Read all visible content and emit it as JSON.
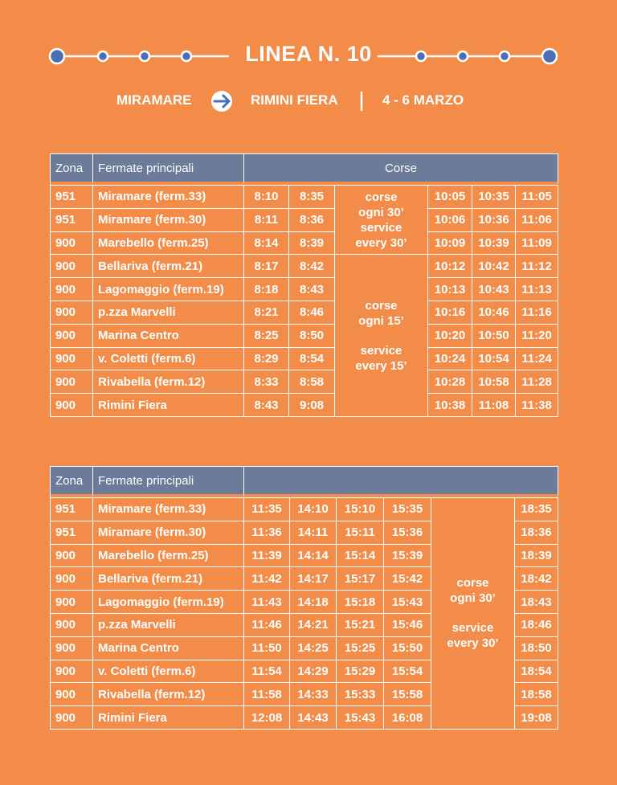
{
  "header": {
    "title": "LINEA N. 10",
    "from": "MIRAMARE",
    "to": "RIMINI FIERA",
    "dates": "4 - 6 MARZO"
  },
  "table1": {
    "headers": [
      "Zona",
      "Fermate principali",
      "Corse"
    ],
    "groups": [
      {
        "note": {
          "it": [
            "corse",
            "ogni 30’"
          ],
          "en": [
            "service",
            "every 30’"
          ]
        },
        "rows": [
          {
            "zona": "951",
            "stop": "Miramare (ferm.33)",
            "times": [
              "8:10",
              "8:35",
              "10:05",
              "10:35",
              "11:05"
            ]
          },
          {
            "zona": "951",
            "stop": "Miramare (ferm.30)",
            "times": [
              "8:11",
              "8:36",
              "10:06",
              "10:36",
              "11:06"
            ]
          },
          {
            "zona": "900",
            "stop": "Marebello (ferm.25)",
            "times": [
              "8:14",
              "8:39",
              "10:09",
              "10:39",
              "11:09"
            ]
          }
        ]
      },
      {
        "note": {
          "it": [
            "corse",
            "ogni 15’"
          ],
          "en": [
            "service",
            "every 15’"
          ]
        },
        "rows": [
          {
            "zona": "900",
            "stop": "Bellariva (ferm.21)",
            "times": [
              "8:17",
              "8:42",
              "10:12",
              "10:42",
              "11:12"
            ]
          },
          {
            "zona": "900",
            "stop": "Lagomaggio (ferm.19)",
            "times": [
              "8:18",
              "8:43",
              "10:13",
              "10:43",
              "11:13"
            ]
          },
          {
            "zona": "900",
            "stop": "p.zza Marvelli",
            "times": [
              "8:21",
              "8:46",
              "10:16",
              "10:46",
              "11:16"
            ]
          },
          {
            "zona": "900",
            "stop": "Marina Centro",
            "times": [
              "8:25",
              "8:50",
              "10:20",
              "10:50",
              "11:20"
            ]
          },
          {
            "zona": "900",
            "stop": "v. Coletti (ferm.6)",
            "times": [
              "8:29",
              "8:54",
              "10:24",
              "10:54",
              "11:24"
            ]
          },
          {
            "zona": "900",
            "stop": "Rivabella (ferm.12)",
            "times": [
              "8:33",
              "8:58",
              "10:28",
              "10:58",
              "11:28"
            ]
          },
          {
            "zona": "900",
            "stop": "Rimini Fiera",
            "times": [
              "8:43",
              "9:08",
              "10:38",
              "11:08",
              "11:38"
            ]
          }
        ]
      }
    ]
  },
  "table2": {
    "headers": [
      "Zona",
      "Fermate principali"
    ],
    "groups": [
      {
        "note": {
          "it": [
            "corse",
            "ogni 30’"
          ],
          "en": [
            "service",
            "every 30’"
          ]
        },
        "rows": [
          {
            "zona": "951",
            "stop": "Miramare (ferm.33)",
            "times": [
              "11:35",
              "14:10",
              "15:10",
              "15:35",
              "18:35"
            ]
          },
          {
            "zona": "951",
            "stop": "Miramare (ferm.30)",
            "times": [
              "11:36",
              "14:11",
              "15:11",
              "15:36",
              "18:36"
            ]
          },
          {
            "zona": "900",
            "stop": "Marebello (ferm.25)",
            "times": [
              "11:39",
              "14:14",
              "15:14",
              "15:39",
              "18:39"
            ]
          },
          {
            "zona": "900",
            "stop": "Bellariva (ferm.21)",
            "times": [
              "11:42",
              "14:17",
              "15:17",
              "15:42",
              "18:42"
            ]
          },
          {
            "zona": "900",
            "stop": "Lagomaggio (ferm.19)",
            "times": [
              "11:43",
              "14:18",
              "15:18",
              "15:43",
              "18:43"
            ]
          },
          {
            "zona": "900",
            "stop": "p.zza Marvelli",
            "times": [
              "11:46",
              "14:21",
              "15:21",
              "15:46",
              "18:46"
            ]
          },
          {
            "zona": "900",
            "stop": "Marina Centro",
            "times": [
              "11:50",
              "14:25",
              "15:25",
              "15:50",
              "18:50"
            ]
          },
          {
            "zona": "900",
            "stop": "v. Coletti (ferm.6)",
            "times": [
              "11:54",
              "14:29",
              "15:29",
              "15:54",
              "18:54"
            ]
          },
          {
            "zona": "900",
            "stop": "Rivabella (ferm.12)",
            "times": [
              "11:58",
              "14:33",
              "15:33",
              "15:58",
              "18:58"
            ]
          },
          {
            "zona": "900",
            "stop": "Rimini Fiera",
            "times": [
              "12:08",
              "14:43",
              "15:43",
              "16:08",
              "19:08"
            ]
          }
        ]
      }
    ]
  }
}
